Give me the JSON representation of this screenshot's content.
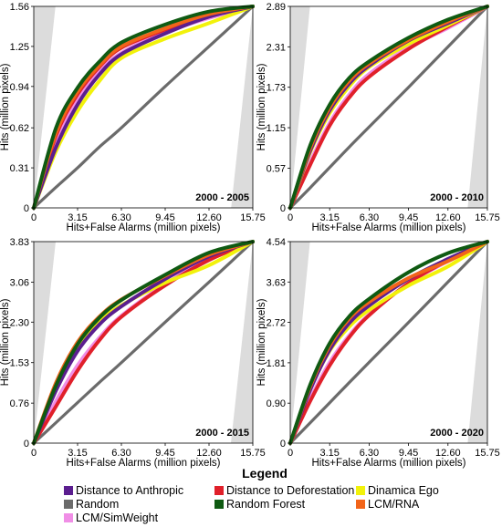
{
  "chart_data": [
    {
      "type": "line",
      "period": "2000 - 2005",
      "xlabel": "Hits+False Alarms (million pixels)",
      "ylabel": "Hits (million pixels)",
      "xlim": [
        0,
        15.75
      ],
      "ylim": [
        0,
        1.56
      ],
      "x_ticks": [
        "0",
        "3.15",
        "6.30",
        "9.45",
        "12.60",
        "15.75"
      ],
      "y_ticks": [
        "0",
        "0.31",
        "0.62",
        "0.94",
        "1.25",
        "1.56"
      ],
      "x": [
        0,
        1.6,
        3.15,
        4.7,
        6.3,
        9.45,
        12.6,
        15.75
      ],
      "series": [
        {
          "name": "Distance to Anthropic",
          "values": [
            0,
            0.47,
            0.8,
            1.03,
            1.19,
            1.35,
            1.48,
            1.56
          ]
        },
        {
          "name": "Distance to Deforestation",
          "values": [
            0,
            0.56,
            0.88,
            1.09,
            1.24,
            1.38,
            1.49,
            1.56
          ]
        },
        {
          "name": "Dinamica Ego",
          "values": [
            0,
            0.44,
            0.75,
            0.98,
            1.16,
            1.31,
            1.43,
            1.56
          ]
        },
        {
          "name": "Random",
          "values": [
            0,
            0.16,
            0.31,
            0.47,
            0.62,
            0.94,
            1.25,
            1.56
          ]
        },
        {
          "name": "Random Forest",
          "values": [
            0,
            0.62,
            0.93,
            1.13,
            1.28,
            1.42,
            1.52,
            1.56
          ]
        },
        {
          "name": "LCM/RNA",
          "values": [
            0,
            0.58,
            0.9,
            1.1,
            1.25,
            1.39,
            1.5,
            1.56
          ]
        },
        {
          "name": "LCM/SimWeight",
          "values": [
            0,
            0.5,
            0.83,
            1.05,
            1.2,
            1.36,
            1.47,
            1.56
          ]
        }
      ]
    },
    {
      "type": "line",
      "period": "2000 - 2010",
      "xlabel": "Hits+False Alarms (million pixels)",
      "ylabel": "Hits (million pixels)",
      "xlim": [
        0,
        15.75
      ],
      "ylim": [
        0,
        2.89
      ],
      "x_ticks": [
        "0",
        "3.15",
        "6.30",
        "9.45",
        "12.60",
        "15.75"
      ],
      "y_ticks": [
        "0",
        "0.57",
        "1.15",
        "1.73",
        "2.31",
        "2.89"
      ],
      "x": [
        0,
        1.6,
        3.15,
        4.7,
        6.3,
        9.45,
        12.6,
        15.75
      ],
      "series": [
        {
          "name": "Distance to Anthropic",
          "values": [
            0,
            0.82,
            1.4,
            1.78,
            2.04,
            2.4,
            2.65,
            2.89
          ]
        },
        {
          "name": "Distance to Deforestation",
          "values": [
            0,
            0.62,
            1.18,
            1.58,
            1.88,
            2.28,
            2.6,
            2.89
          ]
        },
        {
          "name": "Dinamica Ego",
          "values": [
            0,
            0.8,
            1.36,
            1.74,
            2.02,
            2.35,
            2.62,
            2.89
          ]
        },
        {
          "name": "Random",
          "values": [
            0,
            0.29,
            0.58,
            0.87,
            1.16,
            1.73,
            2.31,
            2.89
          ]
        },
        {
          "name": "Random Forest",
          "values": [
            0,
            0.9,
            1.48,
            1.86,
            2.1,
            2.44,
            2.7,
            2.89
          ]
        },
        {
          "name": "LCM/RNA",
          "values": [
            0,
            0.86,
            1.44,
            1.82,
            2.07,
            2.41,
            2.67,
            2.89
          ]
        },
        {
          "name": "LCM/SimWeight",
          "values": [
            0,
            0.66,
            1.22,
            1.62,
            1.92,
            2.3,
            2.58,
            2.89
          ]
        }
      ]
    },
    {
      "type": "line",
      "period": "2000 - 2015",
      "xlabel": "Hits+False Alarms (million pixels)",
      "ylabel": "Hits (million pixels)",
      "xlim": [
        0,
        15.75
      ],
      "ylim": [
        0,
        3.83
      ],
      "x_ticks": [
        "0",
        "3.15",
        "6.30",
        "9.45",
        "12.60",
        "15.75"
      ],
      "y_ticks": [
        "0",
        "0.76",
        "1.53",
        "2.30",
        "3.06",
        "3.83"
      ],
      "x": [
        0,
        1.6,
        3.15,
        4.7,
        6.3,
        9.45,
        12.6,
        15.75
      ],
      "series": [
        {
          "name": "Distance to Anthropic",
          "values": [
            0,
            1.0,
            1.75,
            2.25,
            2.6,
            3.12,
            3.55,
            3.83
          ]
        },
        {
          "name": "Distance to Deforestation",
          "values": [
            0,
            0.7,
            1.38,
            1.95,
            2.4,
            3.0,
            3.48,
            3.83
          ]
        },
        {
          "name": "Dinamica Ego",
          "values": [
            0,
            1.05,
            1.8,
            2.3,
            2.62,
            3.05,
            3.38,
            3.83
          ]
        },
        {
          "name": "Random",
          "values": [
            0,
            0.39,
            0.77,
            1.15,
            1.53,
            2.3,
            3.06,
            3.83
          ]
        },
        {
          "name": "Random Forest",
          "values": [
            0,
            1.1,
            1.88,
            2.38,
            2.72,
            3.2,
            3.62,
            3.83
          ]
        },
        {
          "name": "LCM/RNA",
          "values": [
            0,
            1.15,
            1.92,
            2.4,
            2.73,
            3.18,
            3.58,
            3.83
          ]
        },
        {
          "name": "LCM/SimWeight",
          "values": [
            0,
            0.8,
            1.48,
            2.0,
            2.42,
            3.02,
            3.5,
            3.83
          ]
        }
      ]
    },
    {
      "type": "line",
      "period": "2000 - 2020",
      "xlabel": "Hits+False Alarms (million pixels)",
      "ylabel": "Hits (million pixels)",
      "xlim": [
        0,
        15.75
      ],
      "ylim": [
        0,
        4.54
      ],
      "x_ticks": [
        "0",
        "3.15",
        "6.30",
        "9.45",
        "12.60",
        "15.75"
      ],
      "y_ticks": [
        "0",
        "0.90",
        "1.81",
        "2.72",
        "3.63",
        "4.54"
      ],
      "x": [
        0,
        1.6,
        3.15,
        4.7,
        6.3,
        9.45,
        12.6,
        15.75
      ],
      "series": [
        {
          "name": "Distance to Anthropic",
          "values": [
            0,
            1.2,
            2.1,
            2.7,
            3.1,
            3.7,
            4.15,
            4.54
          ]
        },
        {
          "name": "Distance to Deforestation",
          "values": [
            0,
            0.95,
            1.75,
            2.38,
            2.88,
            3.6,
            4.12,
            4.54
          ]
        },
        {
          "name": "Dinamica Ego",
          "values": [
            0,
            1.22,
            2.08,
            2.62,
            3.0,
            3.55,
            3.98,
            4.54
          ]
        },
        {
          "name": "Random",
          "values": [
            0,
            0.46,
            0.91,
            1.36,
            1.82,
            2.72,
            3.63,
            4.54
          ]
        },
        {
          "name": "Random Forest",
          "values": [
            0,
            1.32,
            2.25,
            2.85,
            3.25,
            3.85,
            4.28,
            4.54
          ]
        },
        {
          "name": "LCM/RNA",
          "values": [
            0,
            1.28,
            2.2,
            2.8,
            3.18,
            3.72,
            4.1,
            4.54
          ]
        },
        {
          "name": "LCM/SimWeight",
          "values": [
            0,
            1.0,
            1.82,
            2.42,
            2.9,
            3.6,
            4.1,
            4.54
          ]
        }
      ]
    }
  ],
  "legend": {
    "title": "Legend",
    "items": [
      {
        "label": "Distance to Anthropic",
        "color": "#5b1e8f"
      },
      {
        "label": "Distance to Deforestation",
        "color": "#e0202a"
      },
      {
        "label": "Dinamica Ego",
        "color": "#f2f20a"
      },
      {
        "label": "Random",
        "color": "#6b6b6b"
      },
      {
        "label": "Random Forest",
        "color": "#0f5a12"
      },
      {
        "label": "LCM/RNA",
        "color": "#f26419"
      },
      {
        "label": "LCM/SimWeight",
        "color": "#f08ee6"
      }
    ]
  },
  "colors": {
    "shade": "#dcdcdc",
    "axis": "#000000"
  }
}
